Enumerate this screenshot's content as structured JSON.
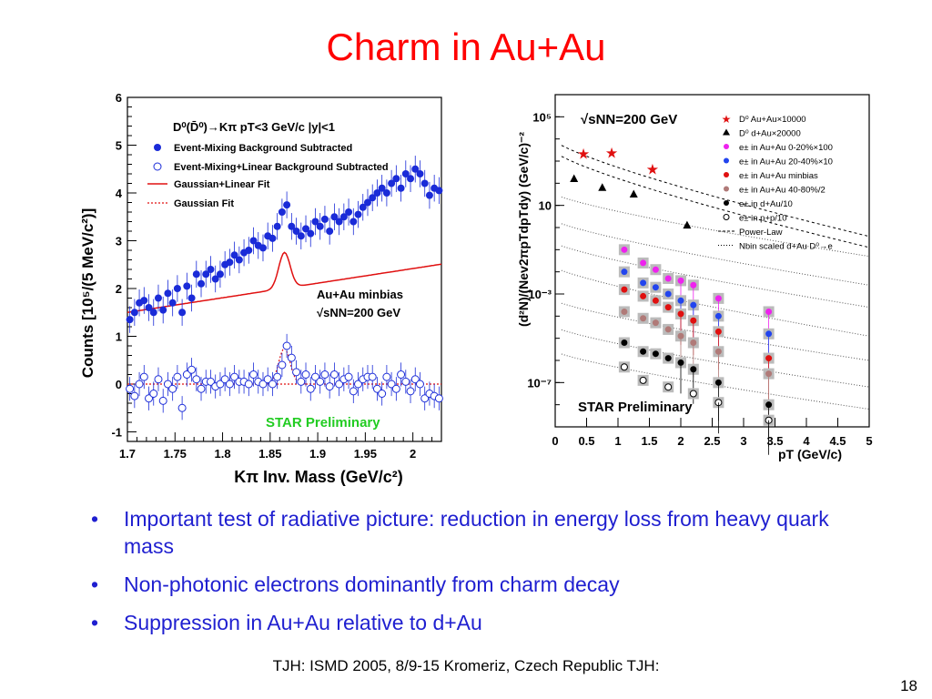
{
  "slide": {
    "title": "Charm in Au+Au",
    "bullets": [
      "Important test of radiative picture: reduction in energy loss from heavy quark mass",
      "Non-photonic electrons dominantly from charm decay",
      "Suppression in Au+Au relative to d+Au"
    ],
    "footer": "TJH: ISMD 2005, 8/9-15 Kromeriz, Czech Republic TJH:",
    "page_number": "18"
  },
  "chart_data": [
    {
      "type": "scatter",
      "xlabel": "Kπ Inv. Mass (GeV/c²)",
      "ylabel": "Counts [10⁵/(5 MeV/c²)]",
      "xlim": [
        1.7,
        2.03
      ],
      "ylim": [
        -1.2,
        6
      ],
      "xticks": [
        "1.7",
        "1.75",
        "1.8",
        "1.85",
        "1.9",
        "1.95",
        "2"
      ],
      "yticks": [
        "-1",
        "0",
        "1",
        "2",
        "3",
        "4",
        "5",
        "6"
      ],
      "legend": {
        "header": "D⁰(D̄⁰)→Kπ  pT<3 GeV/c  |y|<1",
        "entries": [
          {
            "label": "Event-Mixing Background Subtracted",
            "marker": "filled-circle",
            "color": "#1a2bd8"
          },
          {
            "label": "Event-Mixing+Linear Background Subtracted",
            "marker": "open-circle",
            "color": "#1a2bd8"
          },
          {
            "label": "Gaussian+Linear Fit",
            "marker": "solid-line",
            "color": "#e01010"
          },
          {
            "label": "Gaussian Fit",
            "marker": "dotted-line",
            "color": "#e01010"
          }
        ]
      },
      "annotations": [
        "Au+Au minbias",
        "√sNN=200 GeV",
        "STAR Preliminary"
      ],
      "annotation_colors": {
        "star_preliminary": "#22cc22"
      },
      "fit_line": {
        "intercept_at_1_7": 1.5,
        "slope_per_gev": 8.5,
        "peak_center": 1.865,
        "peak_amplitude": 0.75,
        "peak_sigma": 0.006
      },
      "series": [
        {
          "name": "Event-Mixing Background Subtracted",
          "marker": "filled",
          "x": [
            1.7025,
            1.7075,
            1.7125,
            1.7175,
            1.7225,
            1.7275,
            1.7325,
            1.7375,
            1.7425,
            1.7475,
            1.7525,
            1.7575,
            1.7625,
            1.7675,
            1.7725,
            1.7775,
            1.7825,
            1.7875,
            1.7925,
            1.7975,
            1.8025,
            1.8075,
            1.8125,
            1.8175,
            1.8225,
            1.8275,
            1.8325,
            1.8375,
            1.8425,
            1.8475,
            1.8525,
            1.8575,
            1.8625,
            1.8675,
            1.8725,
            1.8775,
            1.8825,
            1.8875,
            1.8925,
            1.8975,
            1.9025,
            1.9075,
            1.9125,
            1.9175,
            1.9225,
            1.9275,
            1.9325,
            1.9375,
            1.9425,
            1.9475,
            1.9525,
            1.9575,
            1.9625,
            1.9675,
            1.9725,
            1.9775,
            1.9825,
            1.9875,
            1.9925,
            1.9975,
            2.0025,
            2.0075,
            2.0125,
            2.0175,
            2.0225,
            2.0275
          ],
          "y": [
            1.35,
            1.5,
            1.7,
            1.75,
            1.6,
            1.5,
            1.8,
            1.55,
            1.9,
            1.7,
            2.0,
            1.5,
            2.05,
            1.8,
            2.3,
            2.1,
            2.3,
            2.4,
            2.2,
            2.3,
            2.5,
            2.55,
            2.7,
            2.6,
            2.75,
            2.8,
            3.0,
            2.9,
            2.85,
            3.1,
            3.05,
            3.3,
            3.6,
            3.75,
            3.3,
            3.2,
            3.1,
            3.25,
            3.15,
            3.4,
            3.3,
            3.45,
            3.2,
            3.5,
            3.4,
            3.5,
            3.6,
            3.4,
            3.55,
            3.7,
            3.8,
            3.9,
            4.0,
            4.1,
            4.0,
            4.2,
            4.3,
            4.1,
            4.4,
            4.3,
            4.5,
            4.4,
            4.2,
            3.95,
            4.1,
            4.05
          ]
        },
        {
          "name": "Event-Mixing+Linear Background Subtracted",
          "marker": "open",
          "x": [
            1.7025,
            1.7075,
            1.7125,
            1.7175,
            1.7225,
            1.7275,
            1.7325,
            1.7375,
            1.7425,
            1.7475,
            1.7525,
            1.7575,
            1.7625,
            1.7675,
            1.7725,
            1.7775,
            1.7825,
            1.7875,
            1.7925,
            1.7975,
            1.8025,
            1.8075,
            1.8125,
            1.8175,
            1.8225,
            1.8275,
            1.8325,
            1.8375,
            1.8425,
            1.8475,
            1.8525,
            1.8575,
            1.8625,
            1.8675,
            1.8725,
            1.8775,
            1.8825,
            1.8875,
            1.8925,
            1.8975,
            1.9025,
            1.9075,
            1.9125,
            1.9175,
            1.9225,
            1.9275,
            1.9325,
            1.9375,
            1.9425,
            1.9475,
            1.9525,
            1.9575,
            1.9625,
            1.9675,
            1.9725,
            1.9775,
            1.9825,
            1.9875,
            1.9925,
            1.9975,
            2.0025,
            2.0075,
            2.0125,
            2.0175,
            2.0225,
            2.0275
          ],
          "y": [
            -0.1,
            -0.25,
            0.0,
            0.15,
            -0.3,
            -0.2,
            0.1,
            -0.35,
            0.0,
            -0.1,
            0.15,
            -0.5,
            0.2,
            0.3,
            0.1,
            -0.1,
            0.05,
            0.05,
            -0.05,
            0.0,
            0.1,
            0.0,
            0.15,
            0.05,
            0.05,
            0.0,
            0.2,
            0.05,
            0.0,
            0.1,
            0.0,
            0.15,
            0.4,
            0.8,
            0.55,
            0.25,
            0.05,
            0.2,
            -0.1,
            0.15,
            0.05,
            0.2,
            -0.05,
            0.2,
            0.0,
            0.1,
            0.15,
            -0.15,
            0.0,
            0.1,
            0.15,
            0.15,
            -0.1,
            -0.2,
            0.15,
            0.0,
            -0.1,
            0.2,
            0.05,
            -0.15,
            0.1,
            0.0,
            -0.3,
            -0.2,
            -0.25,
            -0.3
          ]
        }
      ]
    },
    {
      "type": "scatter",
      "xlabel": "pT (GeV/c)",
      "ylabel": "(d²N)/(Nev2πpTdpTdy) (GeV/c)⁻²",
      "xlim": [
        0,
        5
      ],
      "ylim_log10": [
        -9,
        6
      ],
      "log_y": true,
      "xticks": [
        "0",
        "0.5",
        "1",
        "1.5",
        "2",
        "2.5",
        "3",
        "3.5",
        "4",
        "4.5",
        "5"
      ],
      "yticks": [
        "10⁵",
        "10",
        "10⁻³",
        "10⁻⁷"
      ],
      "annotations": [
        "√sNN=200 GeV",
        "STAR Preliminary"
      ],
      "legend": [
        {
          "label": "D⁰ Au+Au×10000",
          "marker": "star",
          "color": "#e01010"
        },
        {
          "label": "D⁰ d+Au×20000",
          "marker": "triangle",
          "color": "#000000"
        },
        {
          "label": "e± in Au+Au 0-20%×100",
          "marker": "circle",
          "color": "#ee22ee"
        },
        {
          "label": "e± in Au+Au 20-40%×10",
          "marker": "circle",
          "color": "#2244ee"
        },
        {
          "label": "e± in Au+Au minbias",
          "marker": "circle",
          "color": "#e01010"
        },
        {
          "label": "e± in Au+Au 40-80%/2",
          "marker": "circle",
          "color": "#b07a78"
        },
        {
          "label": "e± in d+Au/10",
          "marker": "circle",
          "color": "#000000"
        },
        {
          "label": "e± in p+p/10",
          "marker": "open-circle",
          "color": "#000000"
        },
        {
          "label": "Power-Law",
          "marker": "dashed-line",
          "color": "#000000"
        },
        {
          "label": "Nbin scaled d+Au D⁰→e",
          "marker": "dotted-line",
          "color": "#000000"
        }
      ],
      "series": [
        {
          "name": "D⁰ Au+Au×10000",
          "x": [
            0.45,
            0.9,
            1.55
          ],
          "log10_y": [
            3.3,
            3.35,
            2.6
          ]
        },
        {
          "name": "D⁰ d+Au×20000",
          "x": [
            0.3,
            0.75,
            1.25,
            2.1
          ],
          "log10_y": [
            2.2,
            1.8,
            1.5,
            0.1
          ]
        },
        {
          "name": "e± in Au+Au 0-20%×100",
          "x": [
            1.1,
            1.4,
            1.6,
            1.8,
            2.0,
            2.2,
            2.6,
            3.4
          ],
          "log10_y": [
            -1.0,
            -1.6,
            -1.9,
            -2.3,
            -2.4,
            -2.6,
            -3.2,
            -3.8
          ]
        },
        {
          "name": "e± in Au+Au 20-40%×10",
          "x": [
            1.1,
            1.4,
            1.6,
            1.8,
            2.0,
            2.2,
            2.6,
            3.4
          ],
          "log10_y": [
            -2.0,
            -2.5,
            -2.7,
            -3.0,
            -3.3,
            -3.5,
            -4.0,
            -4.8
          ]
        },
        {
          "name": "e± in Au+Au minbias",
          "x": [
            1.1,
            1.4,
            1.6,
            1.8,
            2.0,
            2.2,
            2.6,
            3.4
          ],
          "log10_y": [
            -2.8,
            -3.1,
            -3.3,
            -3.6,
            -3.9,
            -4.2,
            -4.7,
            -5.9
          ]
        },
        {
          "name": "e± in Au+Au 40-80%/2",
          "x": [
            1.1,
            1.4,
            1.6,
            1.8,
            2.0,
            2.2,
            2.6,
            3.4
          ],
          "log10_y": [
            -3.8,
            -4.1,
            -4.3,
            -4.6,
            -4.9,
            -5.2,
            -5.6,
            -6.6
          ]
        },
        {
          "name": "e± in d+Au/10",
          "x": [
            1.1,
            1.4,
            1.6,
            1.8,
            2.0,
            2.2,
            2.6,
            3.4
          ],
          "log10_y": [
            -5.2,
            -5.6,
            -5.7,
            -5.9,
            -6.1,
            -6.4,
            -7.0,
            -8.0
          ]
        },
        {
          "name": "e± in p+p/10",
          "x": [
            1.1,
            1.4,
            1.8,
            2.2,
            2.6,
            3.4
          ],
          "log10_y": [
            -6.3,
            -6.9,
            -7.2,
            -7.5,
            -7.9,
            -8.7
          ]
        }
      ]
    }
  ]
}
